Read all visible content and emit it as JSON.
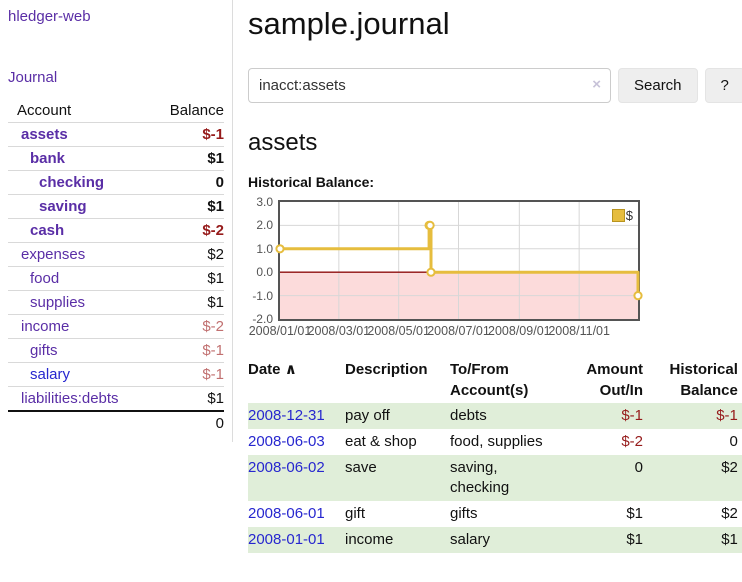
{
  "app": {
    "title": "hledger-web"
  },
  "sidebar": {
    "journal_link": "Journal",
    "account_header": "Account",
    "balance_header": "Balance",
    "accounts": [
      {
        "name": "assets",
        "level": 1,
        "bold": true,
        "balance": "$-1",
        "tone": "neg-strong",
        "blue": false
      },
      {
        "name": "bank",
        "level": 2,
        "bold": true,
        "balance": "$1",
        "tone": "normal",
        "blue": false
      },
      {
        "name": "checking",
        "level": 3,
        "bold": true,
        "balance": "0",
        "tone": "normal",
        "blue": false
      },
      {
        "name": "saving",
        "level": 3,
        "bold": true,
        "balance": "$1",
        "tone": "normal",
        "blue": false
      },
      {
        "name": "cash",
        "level": 2,
        "bold": true,
        "balance": "$-2",
        "tone": "neg-strong",
        "blue": false
      },
      {
        "name": "expenses",
        "level": 1,
        "bold": false,
        "balance": "$2",
        "tone": "normal",
        "blue": false
      },
      {
        "name": "food",
        "level": 2,
        "bold": false,
        "balance": "$1",
        "tone": "normal",
        "blue": false
      },
      {
        "name": "supplies",
        "level": 2,
        "bold": false,
        "balance": "$1",
        "tone": "normal",
        "blue": false
      },
      {
        "name": "income",
        "level": 1,
        "bold": false,
        "balance": "$-2",
        "tone": "neg-soft",
        "blue": false
      },
      {
        "name": "gifts",
        "level": 2,
        "bold": false,
        "balance": "$-1",
        "tone": "neg-soft",
        "blue": false
      },
      {
        "name": "salary",
        "level": 2,
        "bold": false,
        "balance": "$-1",
        "tone": "neg-soft",
        "blue": true
      },
      {
        "name": "liabilities:debts",
        "level": 1,
        "bold": false,
        "balance": "$1",
        "tone": "normal",
        "blue": false
      }
    ],
    "total": "0"
  },
  "main": {
    "title": "sample.journal",
    "account_title": "assets",
    "chart_label": "Historical Balance:"
  },
  "search": {
    "value": "inacct:assets",
    "clear_icon": "×",
    "submit_label": "Search",
    "help_label": "?"
  },
  "chart_data": {
    "type": "line",
    "mode": "step",
    "title": "Historical Balance:",
    "series": [
      {
        "name": "$",
        "points": [
          [
            "2008-01-01",
            1
          ],
          [
            "2008-06-01",
            2
          ],
          [
            "2008-06-02",
            2
          ],
          [
            "2008-06-03",
            0
          ],
          [
            "2008-12-31",
            -1
          ]
        ]
      }
    ],
    "x_range": [
      "2008-01-01",
      "2008-12-31"
    ],
    "x_ticks": [
      "2008/01/01",
      "2008/03/01",
      "2008/05/01",
      "2008/07/01",
      "2008/09/01",
      "2008/11/01"
    ],
    "y_ticks": [
      3.0,
      2.0,
      1.0,
      0.0,
      -1.0,
      -2.0
    ],
    "y_tick_labels": [
      "3.0",
      "2.0",
      "1.0",
      "0.0",
      "-1.0",
      "-2.0"
    ],
    "ylim": [
      -2,
      3
    ],
    "grid": true,
    "negative_region": true,
    "legend": {
      "label": "$",
      "position": "top-right"
    }
  },
  "register": {
    "headers": {
      "date": "Date",
      "sort_icon": "∧",
      "description": "Description",
      "accounts": "To/From Account(s)",
      "amount": "Amount Out/In",
      "balance": "Historical Balance"
    },
    "rows": [
      {
        "date": "2008-12-31",
        "description": "pay off",
        "accounts": [
          "debts"
        ],
        "amount": "$-1",
        "amount_neg": true,
        "balance": "$-1",
        "balance_neg": true,
        "green": true
      },
      {
        "date": "2008-06-03",
        "description": "eat & shop",
        "accounts": [
          "food, supplies"
        ],
        "amount": "$-2",
        "amount_neg": true,
        "balance": "0",
        "balance_neg": false,
        "green": false
      },
      {
        "date": "2008-06-02",
        "description": "save",
        "accounts": [
          "saving,",
          "checking"
        ],
        "amount": "0",
        "amount_neg": false,
        "balance": "$2",
        "balance_neg": false,
        "green": true
      },
      {
        "date": "2008-06-01",
        "description": "gift",
        "accounts": [
          "gifts"
        ],
        "amount": "$1",
        "amount_neg": false,
        "balance": "$2",
        "balance_neg": false,
        "green": false
      },
      {
        "date": "2008-01-01",
        "description": "income",
        "accounts": [
          "salary"
        ],
        "amount": "$1",
        "amount_neg": false,
        "balance": "$1",
        "balance_neg": false,
        "green": true
      }
    ]
  },
  "colors": {
    "link_purple": "#5a2ea6",
    "link_blue": "#2727cf",
    "negative_strong": "#961b1b",
    "negative_soft": "#c17070",
    "row_green": "#e0eed9",
    "series_gold": "#e6bd3e",
    "negative_region_pink": "#fcdbdb",
    "zero_line_red": "#8f0e0e",
    "grid_gray": "#d7d7d7",
    "axis_gray": "#545454"
  }
}
